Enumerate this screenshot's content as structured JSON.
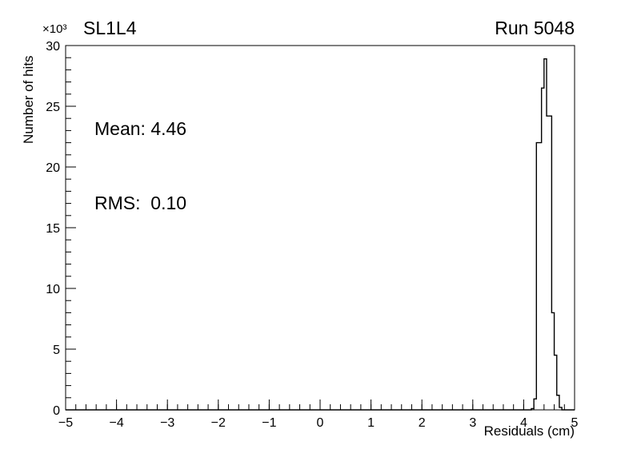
{
  "header": {
    "title": "SL1L4",
    "run_label": "Run 5048"
  },
  "stats_text": {
    "mean_line": "Mean: 4.46",
    "rms_line": "RMS:  0.10"
  },
  "chart_data": {
    "type": "bar",
    "subtype": "step-histogram",
    "title": "SL1L4",
    "annotation": "Run 5048",
    "xlabel": "Residuals (cm)",
    "ylabel": "Number of hits",
    "y_scale_label": "×10³",
    "xlim": [
      -5,
      5
    ],
    "ylim": [
      0,
      30
    ],
    "x_major_ticks": [
      -5,
      -4,
      -3,
      -2,
      -1,
      0,
      1,
      2,
      3,
      4,
      5
    ],
    "y_major_ticks": [
      0,
      5,
      10,
      15,
      20,
      25,
      30
    ],
    "x_minor_step": 0.2,
    "y_minor_step": 1,
    "grid": false,
    "legend": false,
    "line_color": "#000000",
    "mean": 4.46,
    "rms": 0.1,
    "histogram": {
      "units": "thousands of hits",
      "bin_edges": [
        4.1,
        4.15,
        4.2,
        4.25,
        4.3,
        4.35,
        4.4,
        4.45,
        4.5,
        4.55,
        4.6,
        4.65,
        4.7,
        4.75
      ],
      "counts_thousands": [
        0.0,
        0.1,
        0.9,
        22.0,
        22.0,
        26.5,
        28.9,
        24.2,
        24.2,
        8.0,
        4.5,
        1.2,
        0.2
      ]
    }
  }
}
